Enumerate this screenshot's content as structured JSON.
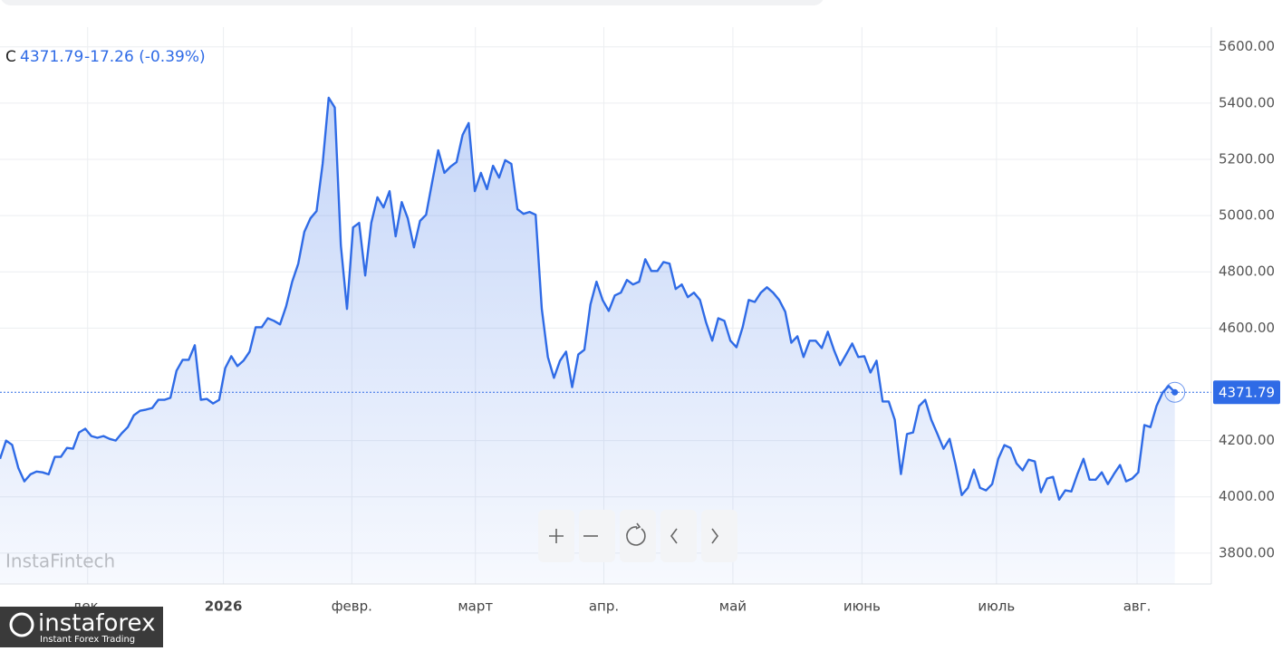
{
  "chart_data": {
    "type": "area",
    "legend_symbol": "C",
    "legend_change": "-17.26 (-0.39%)",
    "watermark": "InstaFintech",
    "logo": {
      "name": "instaforex",
      "tagline": "Instant Forex Trading"
    },
    "series": [
      {
        "name": "C",
        "color": "#2f6be6",
        "values": [
          4135,
          4200,
          4185,
          4103,
          4055,
          4080,
          4090,
          4087,
          4080,
          4142,
          4142,
          4174,
          4171,
          4229,
          4242,
          4216,
          4210,
          4216,
          4206,
          4200,
          4226,
          4248,
          4290,
          4306,
          4310,
          4316,
          4345,
          4345,
          4352,
          4448,
          4487,
          4487,
          4539,
          4345,
          4348,
          4332,
          4345,
          4458,
          4500,
          4465,
          4484,
          4516,
          4603,
          4603,
          4635,
          4626,
          4613,
          4677,
          4765,
          4829,
          4942,
          4990,
          5016,
          5184,
          5419,
          5384,
          4894,
          4668,
          4958,
          4974,
          4787,
          4974,
          5065,
          5029,
          5087,
          4926,
          5048,
          4990,
          4887,
          4981,
          5003,
          5119,
          5232,
          5152,
          5174,
          5190,
          5287,
          5329,
          5087,
          5152,
          5094,
          5177,
          5135,
          5197,
          5184,
          5023,
          5006,
          5013,
          5003,
          4668,
          4497,
          4423,
          4484,
          4516,
          4390,
          4506,
          4523,
          4684,
          4765,
          4700,
          4661,
          4716,
          4726,
          4771,
          4755,
          4765,
          4845,
          4803,
          4803,
          4835,
          4829,
          4739,
          4755,
          4710,
          4726,
          4700,
          4619,
          4555,
          4635,
          4626,
          4555,
          4532,
          4603,
          4700,
          4693,
          4726,
          4745,
          4726,
          4700,
          4658,
          4548,
          4571,
          4497,
          4555,
          4555,
          4529,
          4587,
          4523,
          4468,
          4506,
          4545,
          4497,
          4500,
          4442,
          4484,
          4339,
          4339,
          4274,
          4081,
          4223,
          4229,
          4323,
          4345,
          4274,
          4223,
          4171,
          4206,
          4113,
          4006,
          4032,
          4097,
          4032,
          4023,
          4045,
          4135,
          4184,
          4174,
          4119,
          4094,
          4132,
          4126,
          4016,
          4065,
          4071,
          3990,
          4023,
          4019,
          4081,
          4135,
          4061,
          4061,
          4087,
          4045,
          4081,
          4113,
          4055,
          4065,
          4087,
          4255,
          4248,
          4323,
          4371,
          4394,
          4371.79
        ]
      }
    ],
    "xlim": [
      0,
      199
    ],
    "xticks": [
      {
        "value": 14.4,
        "label": "дек."
      },
      {
        "value": 36.7,
        "label": "2026"
      },
      {
        "value": 57.8,
        "label": "февр."
      },
      {
        "value": 78.1,
        "label": "март"
      },
      {
        "value": 99.2,
        "label": "апр."
      },
      {
        "value": 120.4,
        "label": "май"
      },
      {
        "value": 141.6,
        "label": "июнь"
      },
      {
        "value": 163.7,
        "label": "июль"
      },
      {
        "value": 186.8,
        "label": "авг."
      }
    ],
    "ylim": [
      3690,
      5670
    ],
    "yticks": [
      {
        "value": 3800,
        "label": "3800.00"
      },
      {
        "value": 4000,
        "label": "4000.00"
      },
      {
        "value": 4200,
        "label": "4200.00"
      },
      {
        "value": 4600,
        "label": "4600.00"
      },
      {
        "value": 4800,
        "label": "4800.00"
      },
      {
        "value": 5000,
        "label": "5000.00"
      },
      {
        "value": 5200,
        "label": "5200.00"
      },
      {
        "value": 5400,
        "label": "5400.00"
      },
      {
        "value": 5600,
        "label": "5600.00"
      }
    ],
    "grid": true
  }
}
